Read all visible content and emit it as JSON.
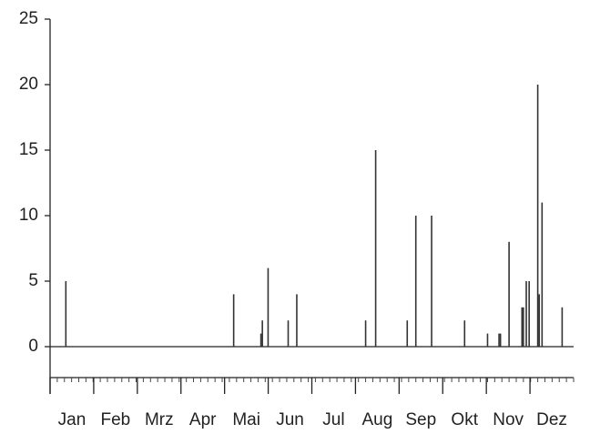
{
  "chart_data": {
    "type": "spike",
    "x": [
      11,
      128,
      147,
      148,
      152,
      166,
      172,
      220,
      227,
      249,
      255,
      266,
      289,
      305,
      313,
      314,
      320,
      329,
      330,
      332,
      334,
      340,
      341,
      343,
      357
    ],
    "values": [
      5,
      4,
      1,
      2,
      6,
      2,
      4,
      2,
      15,
      2,
      10,
      10,
      2,
      1,
      1,
      1,
      8,
      3,
      3,
      5,
      5,
      20,
      4,
      11,
      3
    ],
    "color": "#333333",
    "xlim": [
      0,
      365
    ],
    "months": [
      "Jan",
      "Feb",
      "Mrz",
      "Apr",
      "Mai",
      "Jun",
      "Jul",
      "Aug",
      "Sep",
      "Okt",
      "Nov",
      "Dez"
    ],
    "ylim": [
      0,
      25
    ],
    "yticks": [
      0,
      5,
      10,
      15,
      20,
      25
    ]
  }
}
